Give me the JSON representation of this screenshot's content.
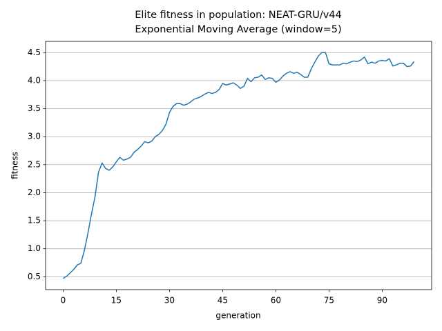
{
  "chart_data": {
    "type": "line",
    "title": "Elite fitness in population: NEAT-GRU/v44",
    "subtitle": "Exponential Moving Average (window=5)",
    "x_label": "generation",
    "y_label": "fitness",
    "x": [
      0,
      1,
      2,
      3,
      4,
      5,
      6,
      7,
      8,
      9,
      10,
      11,
      12,
      13,
      14,
      15,
      16,
      17,
      18,
      19,
      20,
      21,
      22,
      23,
      24,
      25,
      26,
      27,
      28,
      29,
      30,
      31,
      32,
      33,
      34,
      35,
      36,
      37,
      38,
      39,
      40,
      41,
      42,
      43,
      44,
      45,
      46,
      47,
      48,
      49,
      50,
      51,
      52,
      53,
      54,
      55,
      56,
      57,
      58,
      59,
      60,
      61,
      62,
      63,
      64,
      65,
      66,
      67,
      68,
      69,
      70,
      71,
      72,
      73,
      74,
      75,
      76,
      77,
      78,
      79,
      80,
      81,
      82,
      83,
      84,
      85,
      86,
      87,
      88,
      89,
      90,
      91,
      92,
      93,
      94,
      95,
      96,
      97,
      98,
      99
    ],
    "series": [
      {
        "color": "#1f77b4",
        "values": [
          0.47,
          0.51,
          0.57,
          0.63,
          0.71,
          0.74,
          0.97,
          1.28,
          1.62,
          1.93,
          2.37,
          2.53,
          2.43,
          2.4,
          2.46,
          2.55,
          2.63,
          2.58,
          2.6,
          2.63,
          2.72,
          2.77,
          2.83,
          2.91,
          2.89,
          2.92,
          3.0,
          3.04,
          3.11,
          3.22,
          3.43,
          3.54,
          3.59,
          3.59,
          3.56,
          3.58,
          3.62,
          3.67,
          3.69,
          3.72,
          3.76,
          3.79,
          3.77,
          3.79,
          3.84,
          3.95,
          3.92,
          3.94,
          3.96,
          3.92,
          3.86,
          3.9,
          4.04,
          3.98,
          4.05,
          4.06,
          4.1,
          4.02,
          4.05,
          4.04,
          3.97,
          4.01,
          4.08,
          4.13,
          4.16,
          4.13,
          4.15,
          4.11,
          4.06,
          4.06,
          4.21,
          4.33,
          4.44,
          4.5,
          4.5,
          4.3,
          4.28,
          4.28,
          4.28,
          4.31,
          4.3,
          4.33,
          4.35,
          4.34,
          4.37,
          4.42,
          4.3,
          4.33,
          4.31,
          4.35,
          4.36,
          4.35,
          4.39,
          4.26,
          4.28,
          4.31,
          4.31,
          4.25,
          4.26,
          4.34
        ]
      }
    ],
    "xlim": [
      -4.95,
      103.95
    ],
    "xticks": [
      0,
      15,
      30,
      45,
      60,
      75,
      90
    ],
    "ylim": [
      0.27,
      4.7
    ],
    "yticks": [
      0.5,
      {
        "value": 1,
        "label": "1.0"
      },
      1.5,
      {
        "value": 2,
        "label": "2.0"
      },
      2.5,
      {
        "value": 3,
        "label": "3.0"
      },
      3.5,
      {
        "value": 4,
        "label": "4.0"
      },
      4.5
    ],
    "grid": "y"
  }
}
